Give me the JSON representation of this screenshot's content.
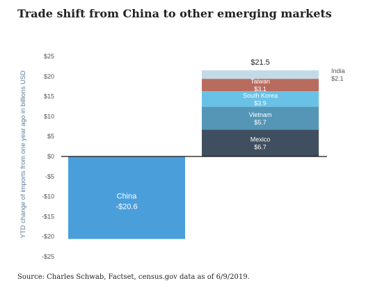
{
  "title": "Trade shift from China to other emerging markets",
  "source": "Source: Charles Schwab, Factset, census.gov data as of 6/9/2019.",
  "chart_data": {
    "type": "bar",
    "ylabel": "YTD change of imports from one year ago  in billions USD",
    "ylim": [
      -25,
      25
    ],
    "yticks": [
      {
        "value": 25,
        "label": "$25"
      },
      {
        "value": 20,
        "label": "$20"
      },
      {
        "value": 15,
        "label": "$15"
      },
      {
        "value": 10,
        "label": "$10"
      },
      {
        "value": 5,
        "label": "$5"
      },
      {
        "value": 0,
        "label": "$0"
      },
      {
        "value": -5,
        "label": "-$5"
      },
      {
        "value": -10,
        "label": "-$10"
      },
      {
        "value": -15,
        "label": "-$15"
      },
      {
        "value": -20,
        "label": "-$20"
      },
      {
        "value": -25,
        "label": "-$25"
      }
    ],
    "grid": false,
    "bars": [
      {
        "name": "China",
        "value": -20.6,
        "value_label": "-$20.6",
        "color": "#4a9fdb"
      },
      {
        "total_label": "$21.5",
        "stack": [
          {
            "name": "Mexico",
            "value": 6.7,
            "value_label": "$6.7",
            "color": "#3f4f5f"
          },
          {
            "name": "Vietnam",
            "value": 5.7,
            "value_label": "$5.7",
            "color": "#5596b7"
          },
          {
            "name": "South Korea",
            "value": 3.9,
            "value_label": "$3.9",
            "color": "#69c1e6"
          },
          {
            "name": "Taiwan",
            "value": 3.1,
            "value_label": "$3.1",
            "color": "#b86c5e"
          },
          {
            "name": "India",
            "value": 2.1,
            "value_label": "$2.1",
            "color": "#c3dbe8",
            "label_outside": true
          }
        ]
      }
    ]
  }
}
